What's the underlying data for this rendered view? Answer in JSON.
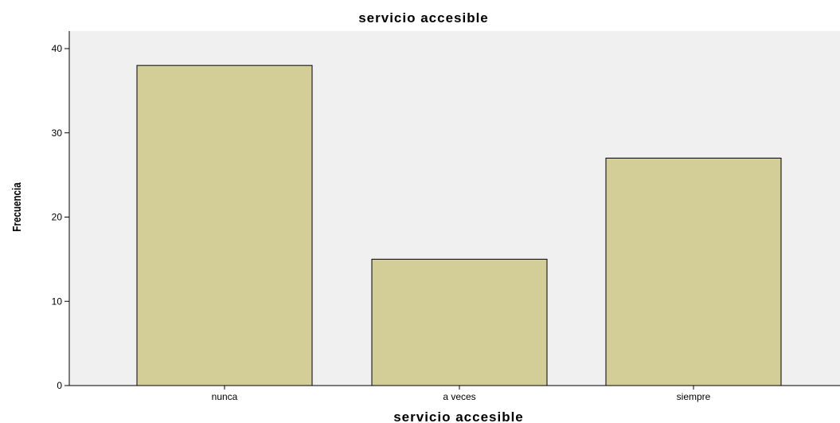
{
  "chart_data": {
    "type": "bar",
    "title": "servicio accesible",
    "xlabel": "servicio accesible",
    "ylabel": "Frecuencia",
    "categories": [
      "nunca",
      "a veces",
      "siempre"
    ],
    "values": [
      38,
      15,
      27
    ],
    "ylim": [
      0,
      42
    ],
    "yticks": [
      0,
      10,
      20,
      30,
      40
    ],
    "grid": false,
    "colors": {
      "plot_background": "#f0f0f0",
      "bar_fill": "#d3ce97",
      "bar_stroke": "#000000"
    }
  }
}
